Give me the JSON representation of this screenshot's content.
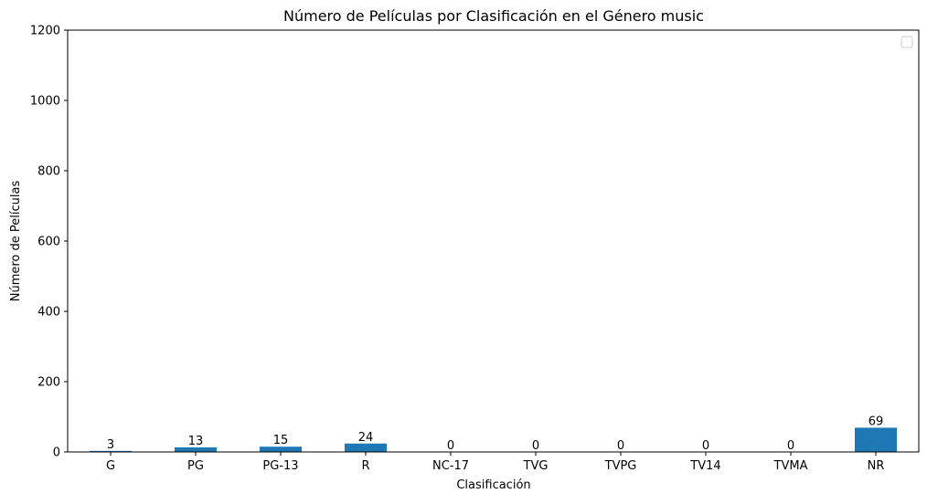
{
  "chart_data": {
    "type": "bar",
    "title": "Número de Películas por Clasificación en el Género music",
    "xlabel": "Clasificación",
    "ylabel": "Número de Películas",
    "categories": [
      "G",
      "PG",
      "PG-13",
      "R",
      "NC-17",
      "TVG",
      "TVPG",
      "TV14",
      "TVMA",
      "NR"
    ],
    "values": [
      3,
      13,
      15,
      24,
      0,
      0,
      0,
      0,
      0,
      69
    ],
    "ylim": [
      0,
      1200
    ],
    "yticks": [
      0,
      200,
      400,
      600,
      800,
      1000,
      1200
    ],
    "grid": false,
    "legend": {
      "placement": "top-right",
      "entries": []
    },
    "colors": {
      "bar": "#1f77b4",
      "axis": "#000000"
    }
  }
}
